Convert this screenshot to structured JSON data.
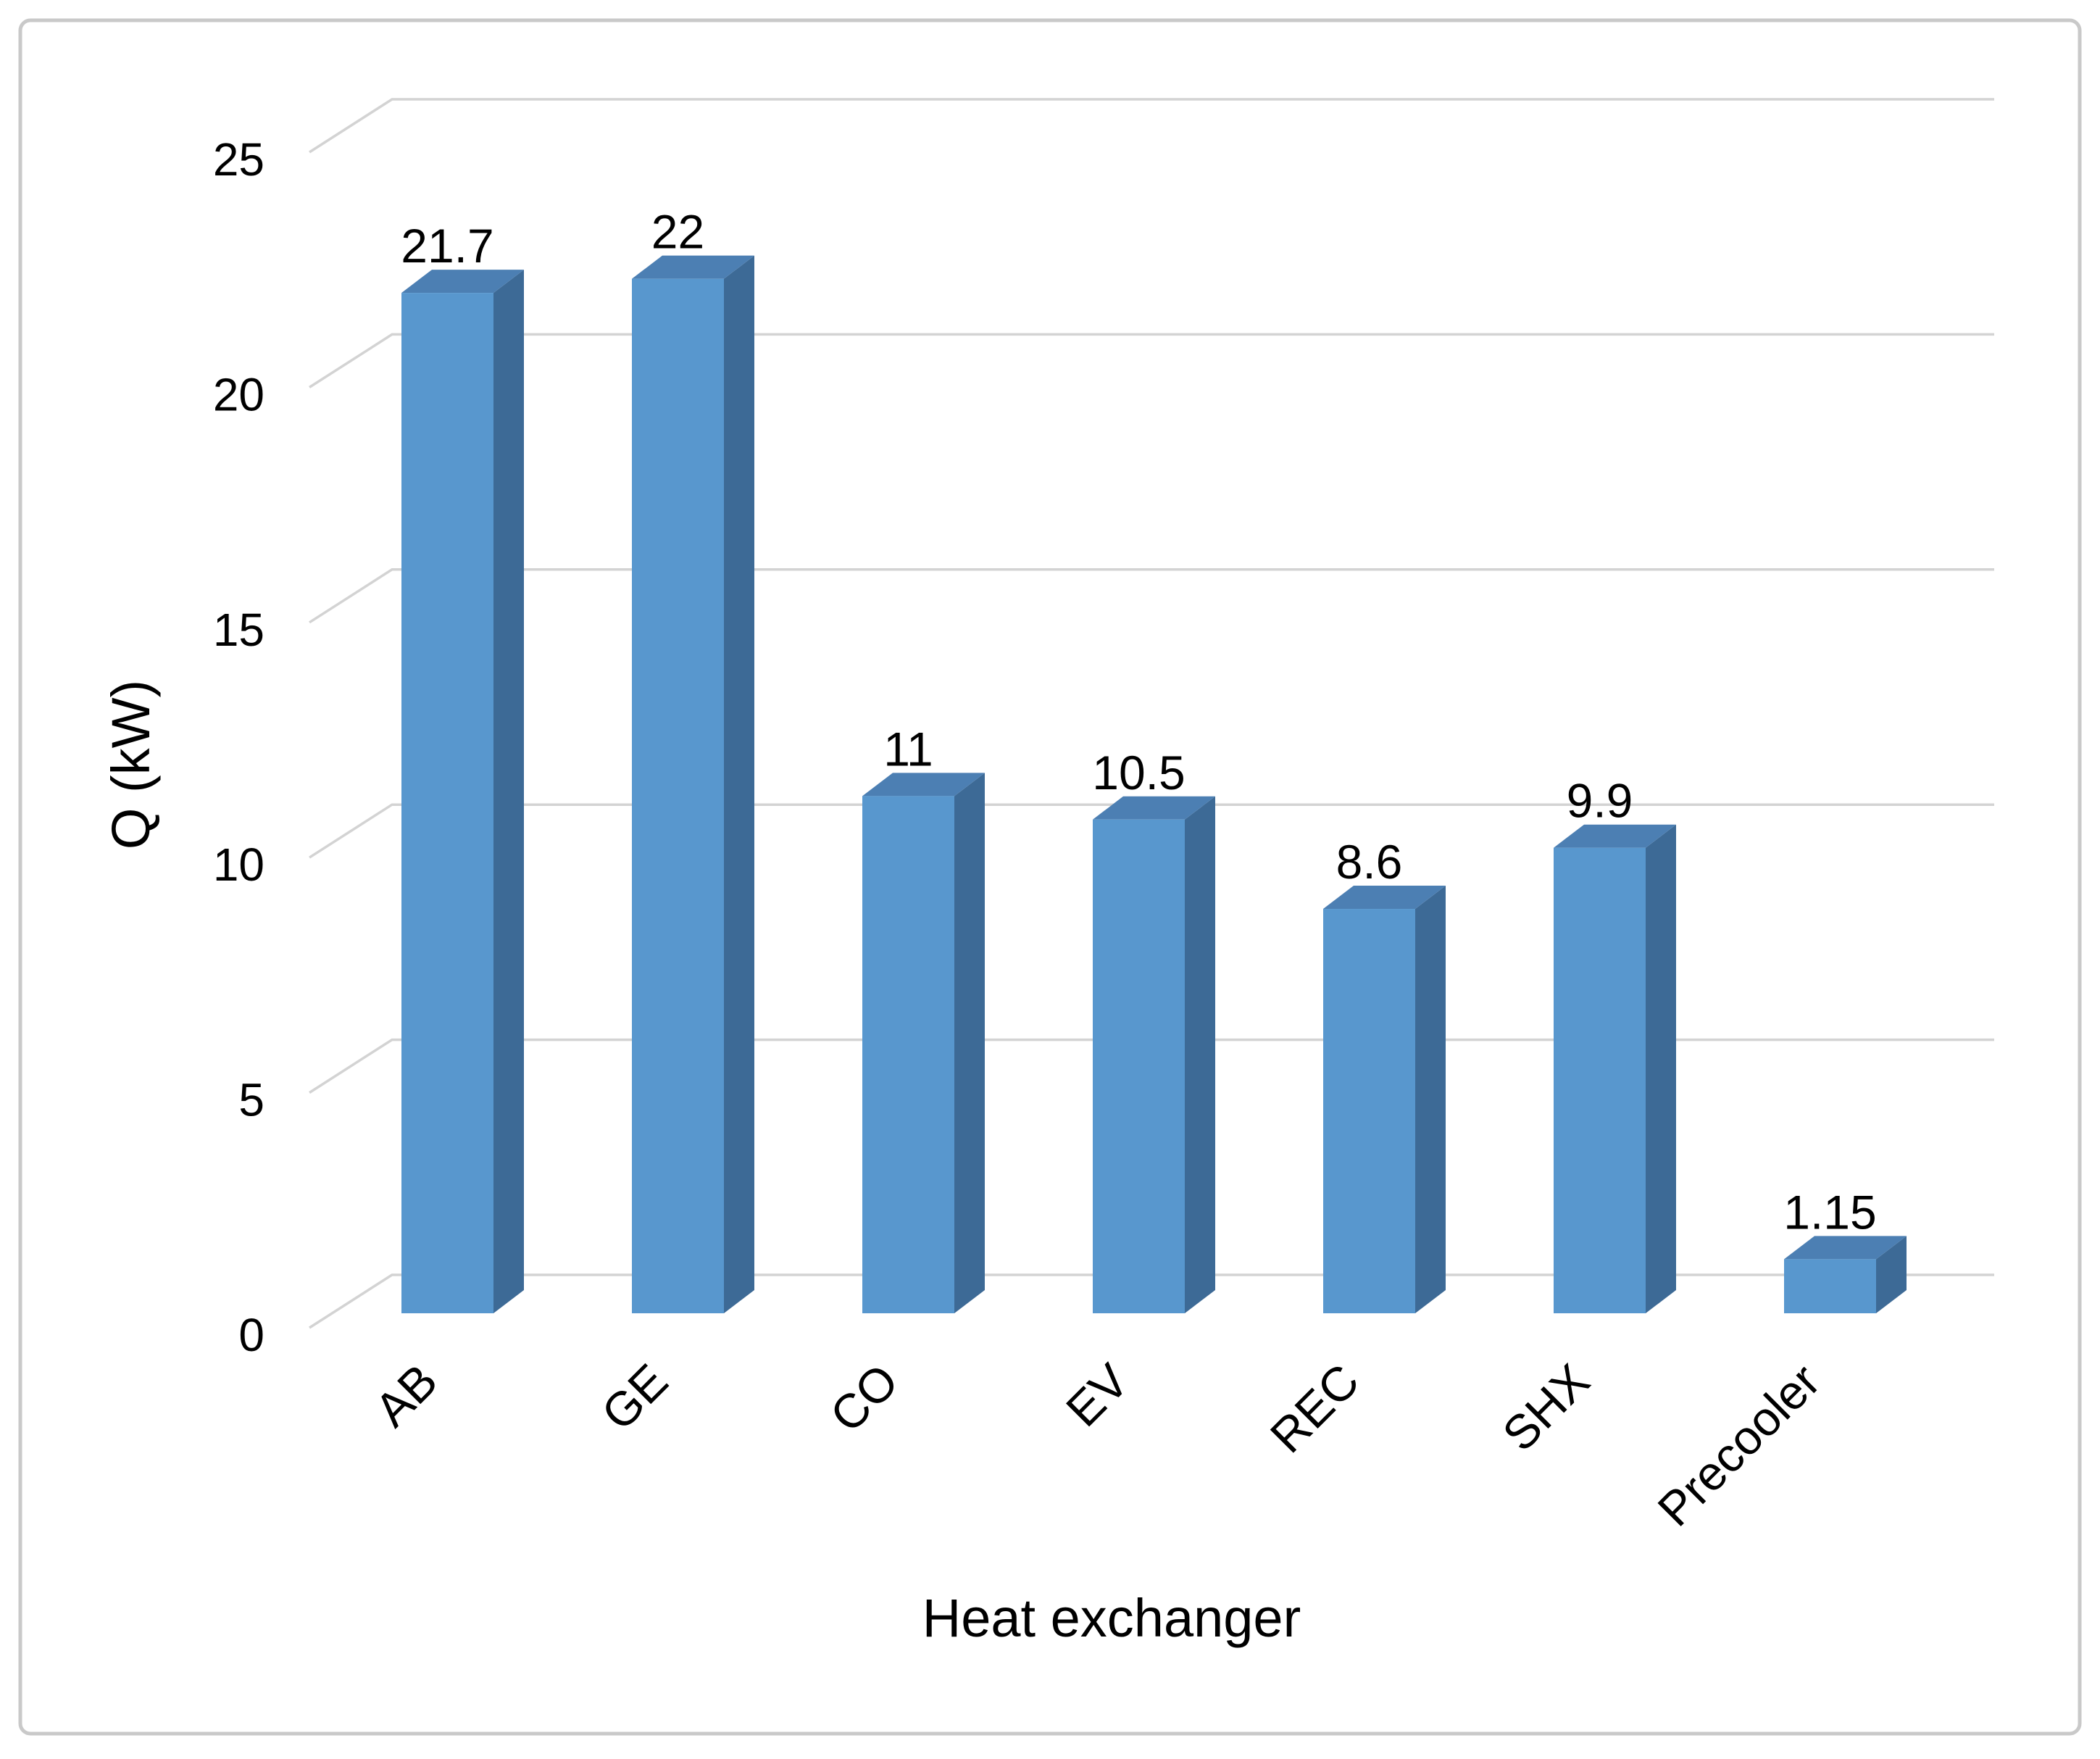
{
  "chart_data": {
    "type": "bar",
    "style": "3d-clustered-column",
    "categories": [
      "AB",
      "GE",
      "CO",
      "EV",
      "REC",
      "SHX",
      "Precooler"
    ],
    "values": [
      21.7,
      22,
      11,
      10.5,
      8.6,
      9.9,
      1.15
    ],
    "value_labels": [
      "21.7",
      "22",
      "11",
      "10.5",
      "8.6",
      "9.9",
      "1.15"
    ],
    "title": "",
    "xlabel": "Heat exchanger",
    "ylabel": "Q (kW)",
    "ylim": [
      0,
      25
    ],
    "yticks": [
      0,
      5,
      10,
      15,
      20,
      25
    ],
    "ytick_labels": [
      "0",
      "5",
      "10",
      "15",
      "20",
      "25"
    ],
    "grid": "horizontal-gridlines-on-back-wall",
    "legend": "none",
    "colors": {
      "bar_front": "#5897CE",
      "bar_side": "#3D6A96",
      "bar_top": "#4C7FB3",
      "gridline": "#D3D3D3",
      "text": "#000000",
      "frame_border": "#C9C9C9",
      "background": "#FFFFFF"
    }
  }
}
